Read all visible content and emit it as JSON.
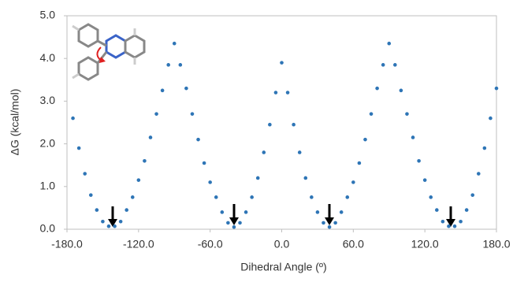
{
  "chart_data": {
    "type": "scatter",
    "xlabel": "Dihedral Angle (º)",
    "ylabel": "ΔG (kcal/mol)",
    "xlim": [
      -180,
      180
    ],
    "ylim": [
      0,
      5
    ],
    "xticks": [
      {
        "value": -180,
        "label": "-180.0"
      },
      {
        "value": -120,
        "label": "-120.0"
      },
      {
        "value": -60,
        "label": "-60.0"
      },
      {
        "value": 0,
        "label": "0.0"
      },
      {
        "value": 60,
        "label": "60.0"
      },
      {
        "value": 120,
        "label": "120.0"
      },
      {
        "value": 180,
        "label": "180.0"
      }
    ],
    "yticks": [
      {
        "value": 0,
        "label": "0.0"
      },
      {
        "value": 1,
        "label": "1.0"
      },
      {
        "value": 2,
        "label": "2.0"
      },
      {
        "value": 3,
        "label": "3.0"
      },
      {
        "value": 4,
        "label": "4.0"
      },
      {
        "value": 5,
        "label": "5.0"
      }
    ],
    "grid": false,
    "series": [
      {
        "color": "#2e75b6",
        "x": [
          -175,
          -170,
          -165,
          -160,
          -155,
          -150,
          -145,
          -140,
          -135,
          -130,
          -125,
          -120,
          -115,
          -110,
          -105,
          -100,
          -95,
          -90,
          -85,
          -80,
          -75,
          -70,
          -65,
          -60,
          -55,
          -50,
          -45,
          -40,
          -35,
          -30,
          -25,
          -20,
          -15,
          -10,
          -5,
          0,
          5,
          10,
          15,
          20,
          25,
          30,
          35,
          40,
          45,
          50,
          55,
          60,
          65,
          70,
          75,
          80,
          85,
          90,
          95,
          100,
          105,
          110,
          115,
          120,
          125,
          130,
          135,
          140,
          145,
          150,
          155,
          160,
          165,
          170,
          175,
          180
        ],
        "values": [
          2.6,
          1.9,
          1.3,
          0.8,
          0.45,
          0.18,
          0.07,
          0.07,
          0.18,
          0.45,
          0.75,
          1.15,
          1.6,
          2.15,
          2.7,
          3.25,
          3.85,
          4.35,
          3.85,
          3.3,
          2.7,
          2.1,
          1.55,
          1.1,
          0.75,
          0.4,
          0.15,
          0.05,
          0.15,
          0.4,
          0.75,
          1.2,
          1.8,
          2.45,
          3.2,
          3.9,
          3.2,
          2.45,
          1.8,
          1.2,
          0.75,
          0.4,
          0.15,
          0.05,
          0.15,
          0.4,
          0.75,
          1.1,
          1.55,
          2.1,
          2.7,
          3.3,
          3.85,
          4.35,
          3.85,
          3.25,
          2.7,
          2.15,
          1.6,
          1.15,
          0.75,
          0.45,
          0.18,
          0.07,
          0.07,
          0.18,
          0.45,
          0.8,
          1.3,
          1.9,
          2.6,
          3.3
        ]
      }
    ]
  }
}
